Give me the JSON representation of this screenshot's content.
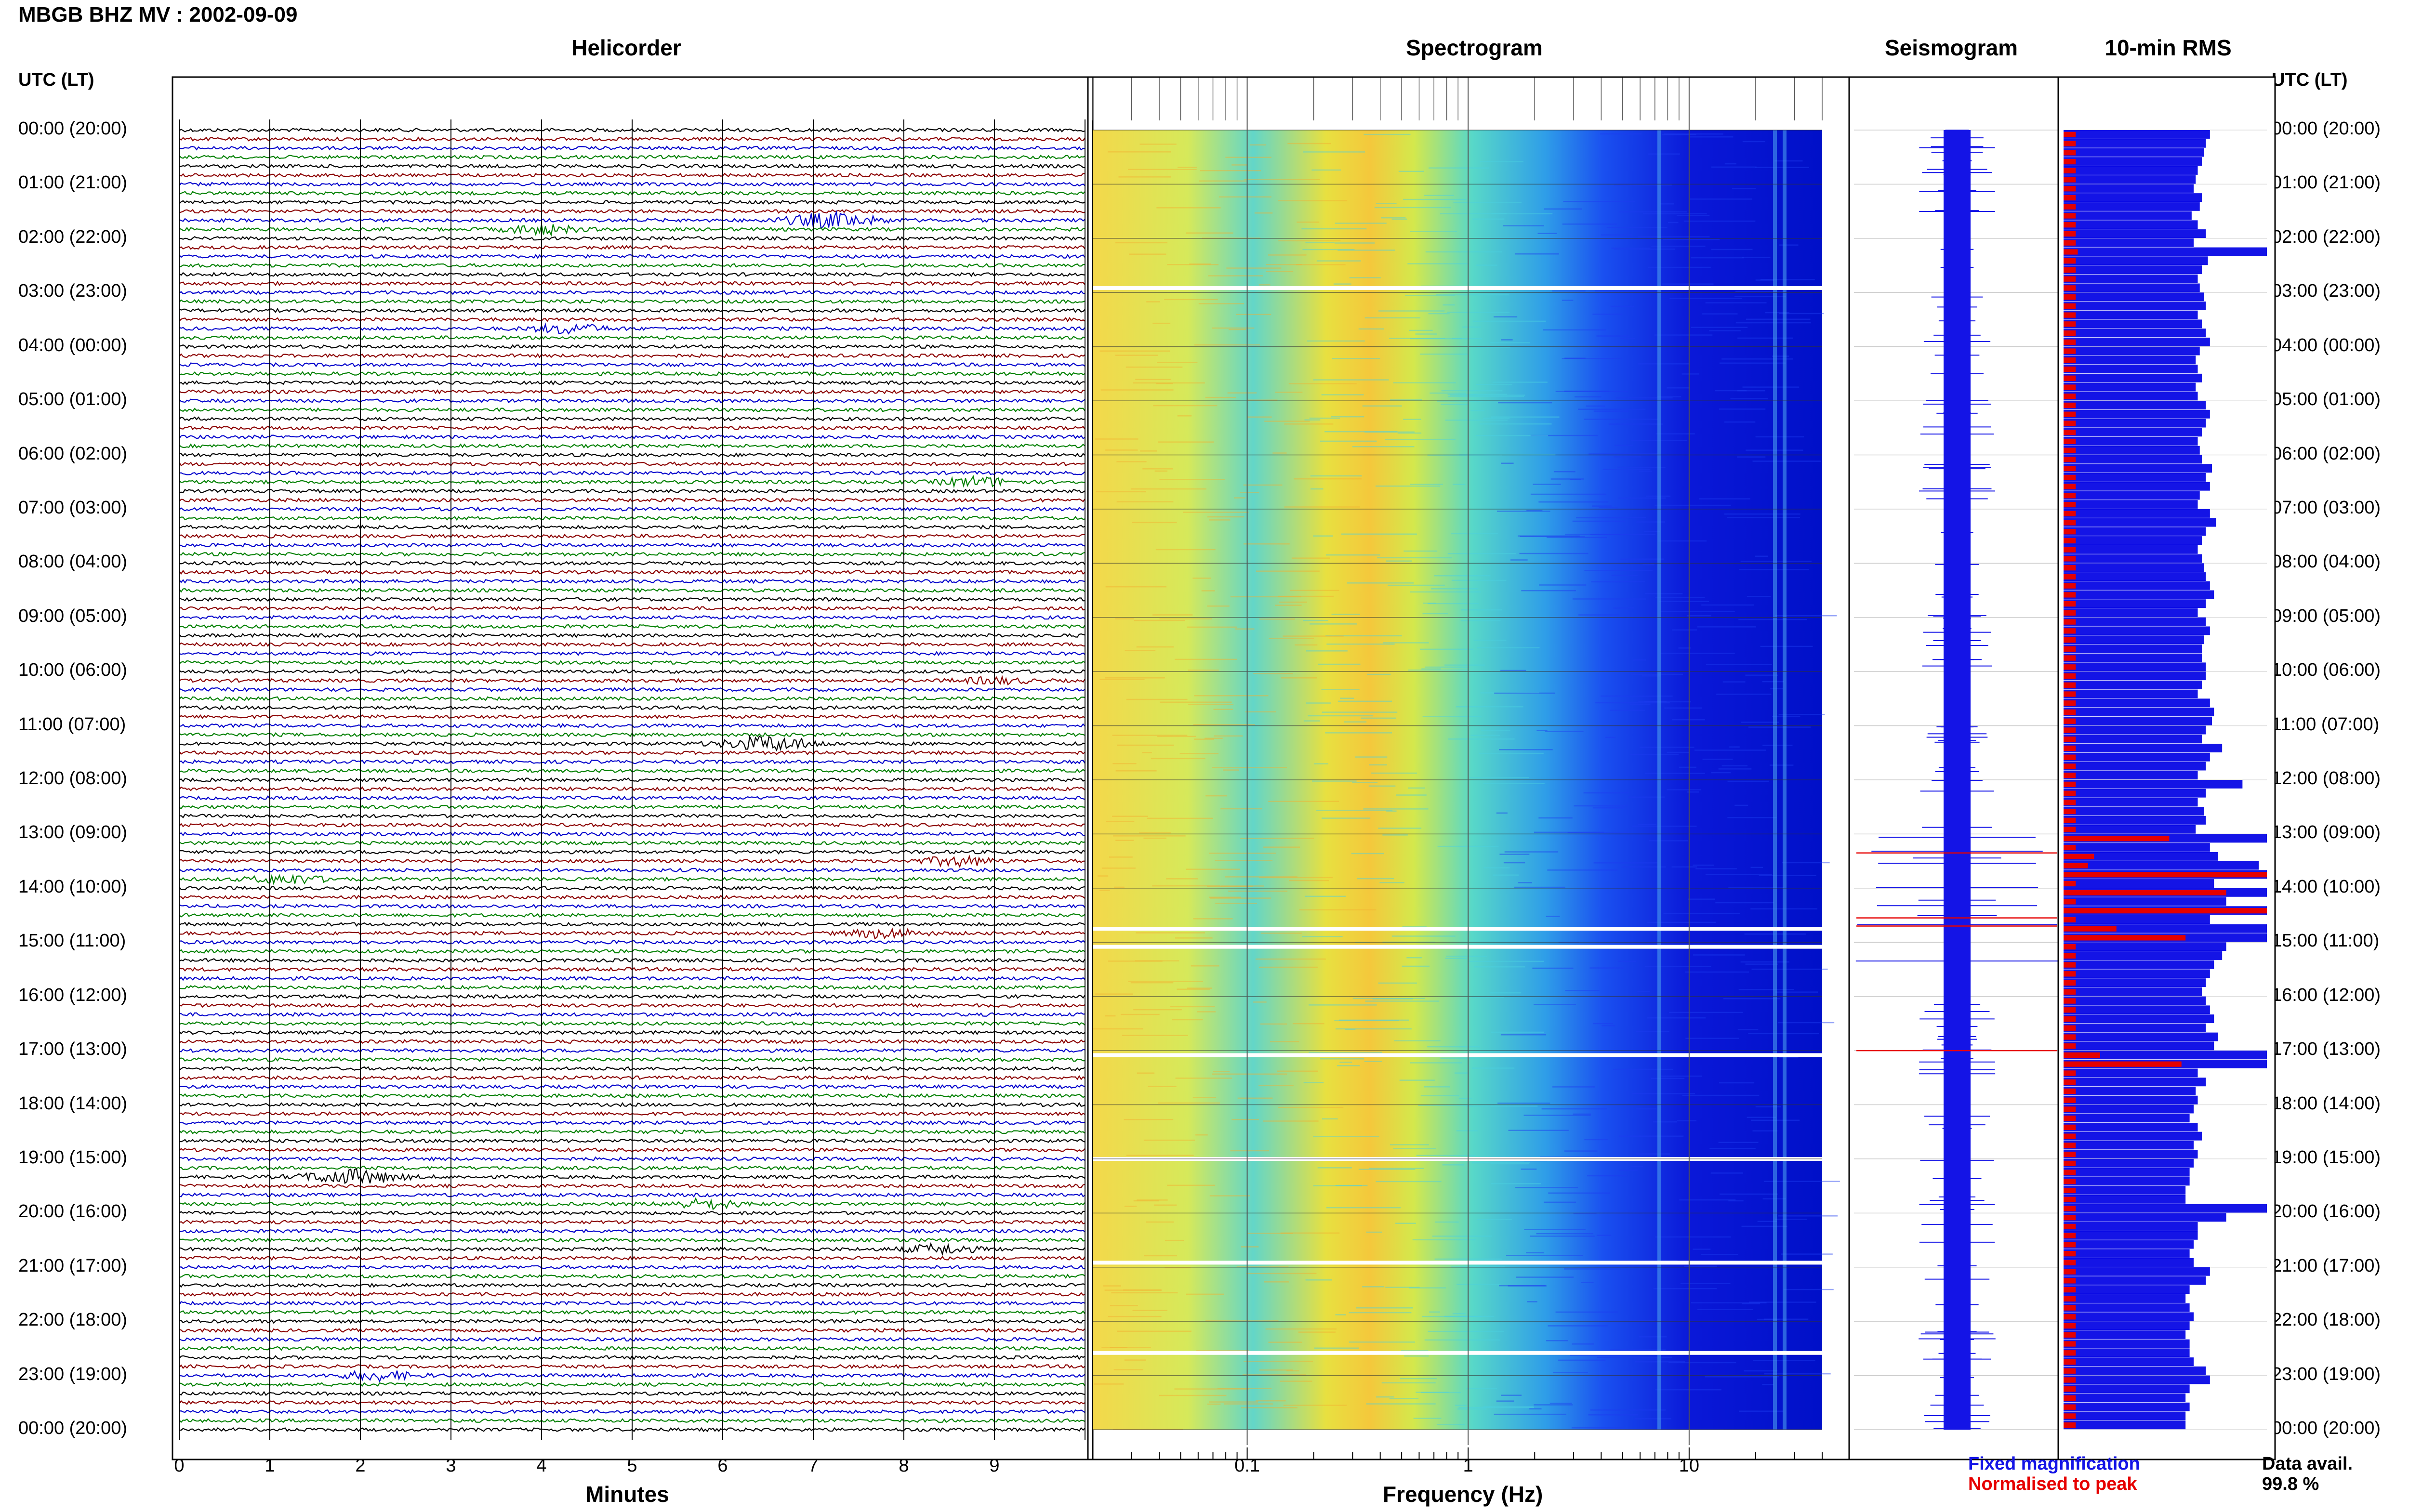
{
  "title": "MBGB BHZ MV : 2002-09-09",
  "panels": {
    "helicorder": "Helicorder",
    "spectrogram": "Spectrogram",
    "seismogram": "Seismogram",
    "rms": "10-min RMS"
  },
  "time_axis_header": "UTC (LT)",
  "hour_labels": [
    "00:00 (20:00)",
    "01:00 (21:00)",
    "02:00 (22:00)",
    "03:00 (23:00)",
    "04:00 (00:00)",
    "05:00 (01:00)",
    "06:00 (02:00)",
    "07:00 (03:00)",
    "08:00 (04:00)",
    "09:00 (05:00)",
    "10:00 (06:00)",
    "11:00 (07:00)",
    "12:00 (08:00)",
    "13:00 (09:00)",
    "14:00 (10:00)",
    "15:00 (11:00)",
    "16:00 (12:00)",
    "17:00 (13:00)",
    "18:00 (14:00)",
    "19:00 (15:00)",
    "20:00 (16:00)",
    "21:00 (17:00)",
    "22:00 (18:00)",
    "23:00 (19:00)",
    "00:00 (20:00)"
  ],
  "x_axes": {
    "minutes_label": "Minutes",
    "minutes_ticks": [
      "0",
      "1",
      "2",
      "3",
      "4",
      "5",
      "6",
      "7",
      "8",
      "9"
    ],
    "frequency_label": "Frequency (Hz)",
    "frequency_ticks": [
      "0.1",
      "1",
      "10"
    ]
  },
  "legend": {
    "fixed": "Fixed magnification",
    "normalised": "Normalised to peak",
    "fixed_color": "#1414e6",
    "normalised_color": "#e60000"
  },
  "data_availability": {
    "label": "Data avail.",
    "value": "99.8 %"
  },
  "colors": {
    "trace_cycle": [
      "#000000",
      "#8b0000",
      "#0000cc",
      "#008000"
    ],
    "spectrogram_scale": [
      "#0000ff",
      "#00bfff",
      "#40e0d0",
      "#ffff00",
      "#ff0000"
    ]
  },
  "chart_data": [
    {
      "type": "line",
      "name_hint": "helicorder",
      "xlabel": "Minutes",
      "x_range": [
        0,
        10
      ],
      "rows_per_hour": 6,
      "hours": 24,
      "events": [
        {
          "utc": "01:40",
          "minute": 7.2,
          "amp": "large"
        },
        {
          "utc": "01:50",
          "minute": 4.0,
          "amp": "medium"
        },
        {
          "utc": "03:40",
          "minute": 4.3,
          "amp": "medium"
        },
        {
          "utc": "06:30",
          "minute": 8.8,
          "amp": "medium"
        },
        {
          "utc": "10:10",
          "minute": 9.0,
          "amp": "small"
        },
        {
          "utc": "11:20",
          "minute": 6.5,
          "amp": "large"
        },
        {
          "utc": "13:30",
          "minute": 8.6,
          "amp": "medium"
        },
        {
          "utc": "13:50",
          "minute": 1.2,
          "amp": "medium"
        },
        {
          "utc": "14:50",
          "minute": 7.8,
          "amp": "medium"
        },
        {
          "utc": "19:20",
          "minute": 1.9,
          "amp": "large"
        },
        {
          "utc": "19:50",
          "minute": 5.8,
          "amp": "medium"
        },
        {
          "utc": "20:40",
          "minute": 8.4,
          "amp": "medium"
        },
        {
          "utc": "23:00",
          "minute": 2.2,
          "amp": "medium"
        }
      ]
    },
    {
      "type": "heatmap",
      "name_hint": "spectrogram",
      "xlabel": "Frequency (Hz)",
      "x_scale": "log",
      "x_range": [
        0.02,
        40
      ],
      "gaps_utc": [
        "02:55",
        "14:45",
        "15:05",
        "17:05",
        "19:00",
        "20:55",
        "22:35"
      ]
    },
    {
      "type": "bar",
      "name_hint": "10-min RMS",
      "orientation": "horizontal",
      "series": [
        {
          "name": "Fixed magnification",
          "values": [
            0.72,
            0.7,
            0.69,
            0.68,
            0.66,
            0.65,
            0.64,
            0.68,
            0.67,
            0.63,
            0.66,
            0.7,
            0.64,
            1.0,
            0.71,
            0.68,
            0.66,
            0.67,
            0.69,
            0.7,
            0.66,
            0.68,
            0.7,
            0.72,
            0.67,
            0.65,
            0.66,
            0.68,
            0.65,
            0.66,
            0.7,
            0.72,
            0.7,
            0.68,
            0.66,
            0.67,
            0.68,
            0.73,
            0.7,
            0.72,
            0.67,
            0.66,
            0.72,
            0.75,
            0.7,
            0.68,
            0.66,
            0.68,
            0.69,
            0.7,
            0.72,
            0.74,
            0.7,
            0.66,
            0.7,
            0.72,
            0.69,
            0.68,
            0.68,
            0.7,
            0.7,
            0.68,
            0.66,
            0.72,
            0.74,
            0.73,
            0.7,
            0.68,
            0.78,
            0.72,
            0.7,
            0.66,
            0.88,
            0.7,
            0.66,
            0.69,
            0.7,
            0.65,
            1.0,
            0.72,
            0.76,
            0.96,
            1.0,
            0.74,
            1.0,
            0.8,
            1.0,
            0.72,
            1.0,
            1.0,
            0.8,
            0.78,
            0.74,
            0.72,
            0.7,
            0.68,
            0.7,
            0.72,
            0.74,
            0.7,
            0.76,
            0.74,
            1.0,
            1.0,
            0.66,
            0.7,
            0.65,
            0.66,
            0.64,
            0.62,
            0.66,
            0.68,
            0.64,
            0.66,
            0.64,
            0.62,
            0.62,
            0.6,
            0.6,
            1.0,
            0.8,
            0.66,
            0.66,
            0.64,
            0.62,
            0.64,
            0.72,
            0.7,
            0.62,
            0.6,
            0.62,
            0.64,
            0.62,
            0.6,
            0.62,
            0.62,
            0.64,
            0.7,
            0.72,
            0.62,
            0.6,
            0.62,
            0.6,
            0.6
          ]
        },
        {
          "name": "Normalised to peak",
          "values": [
            0.06,
            0.06,
            0.06,
            0.06,
            0.06,
            0.06,
            0.06,
            0.06,
            0.06,
            0.06,
            0.06,
            0.06,
            0.06,
            0.07,
            0.06,
            0.06,
            0.06,
            0.06,
            0.06,
            0.06,
            0.06,
            0.06,
            0.06,
            0.06,
            0.06,
            0.06,
            0.06,
            0.06,
            0.06,
            0.06,
            0.06,
            0.06,
            0.06,
            0.06,
            0.06,
            0.06,
            0.06,
            0.06,
            0.06,
            0.06,
            0.06,
            0.06,
            0.06,
            0.06,
            0.06,
            0.06,
            0.06,
            0.06,
            0.06,
            0.06,
            0.06,
            0.06,
            0.06,
            0.06,
            0.06,
            0.06,
            0.06,
            0.06,
            0.06,
            0.06,
            0.06,
            0.06,
            0.06,
            0.06,
            0.06,
            0.06,
            0.06,
            0.06,
            0.06,
            0.06,
            0.06,
            0.06,
            0.06,
            0.06,
            0.06,
            0.06,
            0.06,
            0.06,
            0.52,
            0.06,
            0.15,
            0.12,
            1.0,
            0.06,
            0.8,
            0.06,
            1.0,
            0.06,
            0.26,
            0.6,
            0.06,
            0.06,
            0.06,
            0.06,
            0.06,
            0.06,
            0.06,
            0.06,
            0.06,
            0.06,
            0.06,
            0.06,
            0.18,
            0.58,
            0.06,
            0.06,
            0.06,
            0.06,
            0.06,
            0.06,
            0.06,
            0.06,
            0.06,
            0.06,
            0.06,
            0.06,
            0.06,
            0.06,
            0.06,
            0.06,
            0.06,
            0.06,
            0.06,
            0.06,
            0.06,
            0.06,
            0.06,
            0.06,
            0.06,
            0.06,
            0.06,
            0.06,
            0.06,
            0.06,
            0.06,
            0.06,
            0.06,
            0.06,
            0.06,
            0.06,
            0.06,
            0.06,
            0.06,
            0.06
          ]
        }
      ]
    }
  ]
}
